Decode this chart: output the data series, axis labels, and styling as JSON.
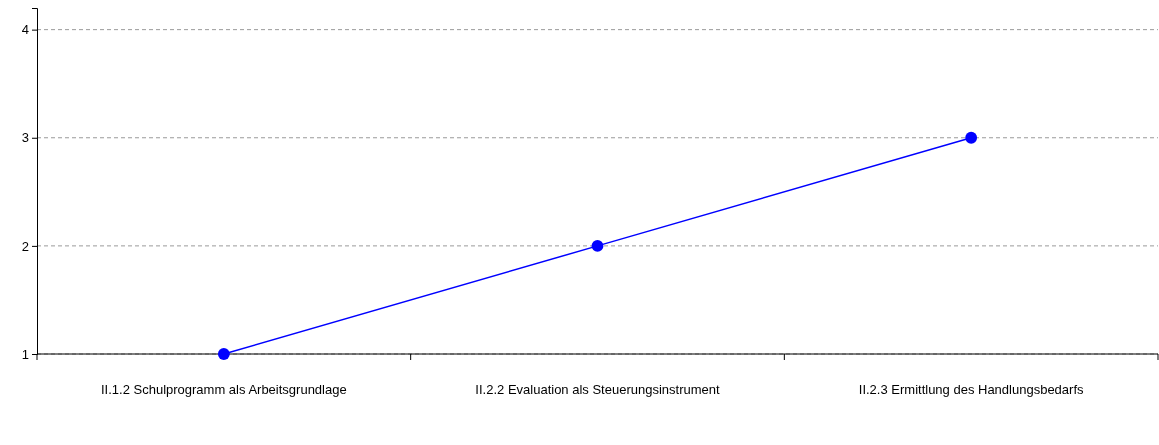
{
  "chart_data": {
    "type": "line",
    "categories": [
      "II.1.2 Schulprogramm als Arbeitsgrundlage",
      "II.2.2 Evaluation als Steuerungsinstrument",
      "II.2.3 Ermittlung des Handlungsbedarfs"
    ],
    "series": [
      {
        "color": "#0000ff",
        "values": [
          1,
          2,
          3
        ]
      }
    ],
    "ylim": [
      1,
      4.2
    ],
    "yticks": [
      1,
      2,
      3,
      4
    ],
    "grid": "y",
    "marker": "circle",
    "line_style": "solid",
    "legend": false
  }
}
